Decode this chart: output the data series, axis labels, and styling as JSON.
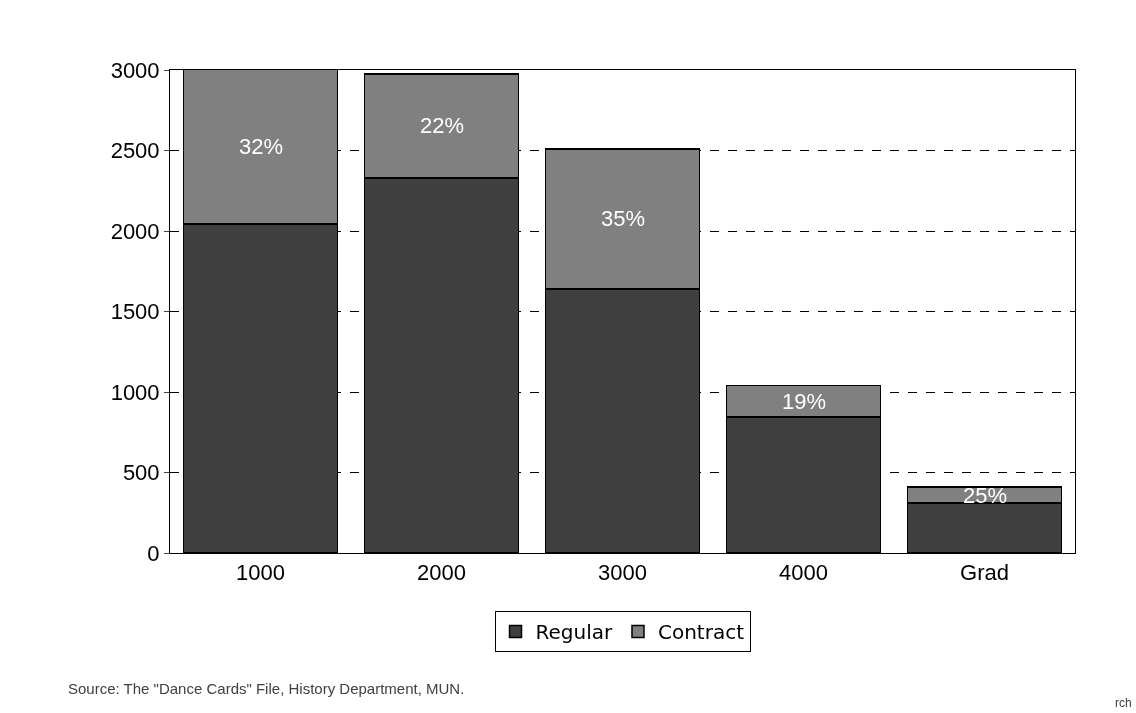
{
  "chart_data": {
    "type": "bar",
    "stacked": true,
    "categories": [
      "1000",
      "2000",
      "3000",
      "4000",
      "Grad"
    ],
    "series": [
      {
        "name": "Regular",
        "color": "#404040",
        "values": [
          2045,
          2330,
          1640,
          845,
          310
        ]
      },
      {
        "name": "Contract",
        "color": "#808080",
        "values": [
          960,
          645,
          870,
          195,
          100
        ]
      }
    ],
    "ylim": [
      0,
      3000
    ],
    "yticks": [
      0,
      500,
      1000,
      1500,
      2000,
      2500,
      3000
    ],
    "grid": "y",
    "legend": "bottom",
    "annotations": [
      "32%",
      "22%",
      "35%",
      "19%",
      "25%",
      "Source: The \"Dance Cards\" File, History Department, MUN.",
      "rch"
    ]
  }
}
